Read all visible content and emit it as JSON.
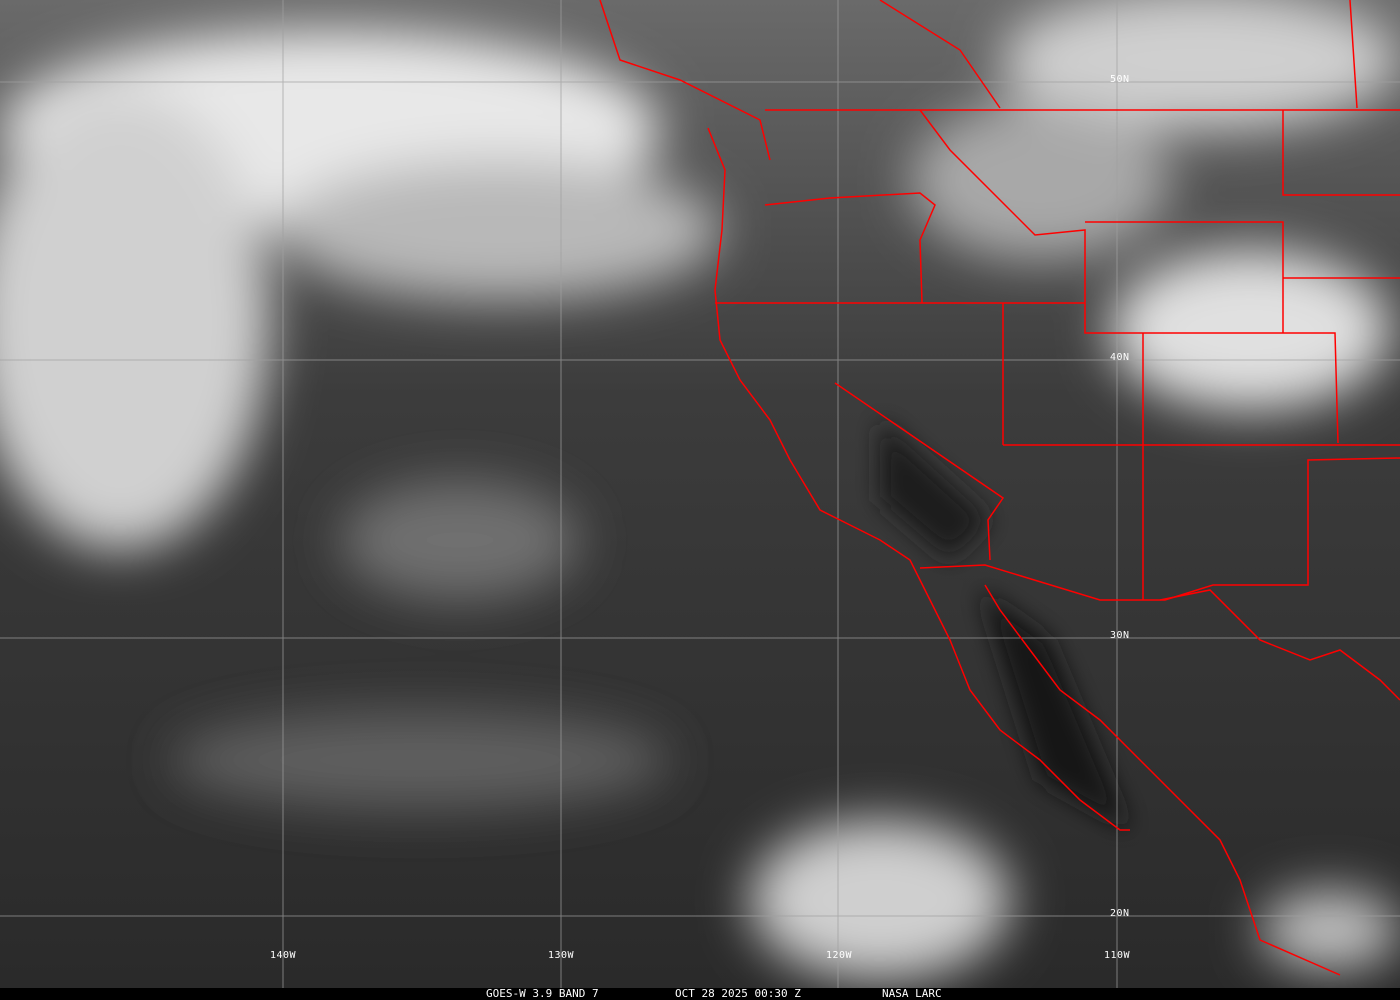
{
  "caption": {
    "satellite": "GOES-W 3.9 BAND 7",
    "datetime": "OCT 28 2025 00:30 Z",
    "source": "NASA LARC"
  },
  "grid": {
    "longitudes": [
      "140W",
      "130W",
      "120W",
      "110W"
    ],
    "latitudes": [
      "50N",
      "40N",
      "30N",
      "20N"
    ]
  },
  "colors": {
    "borders": "#ff0000",
    "grid": "#a0a0a0",
    "caption_bg": "#000000"
  }
}
